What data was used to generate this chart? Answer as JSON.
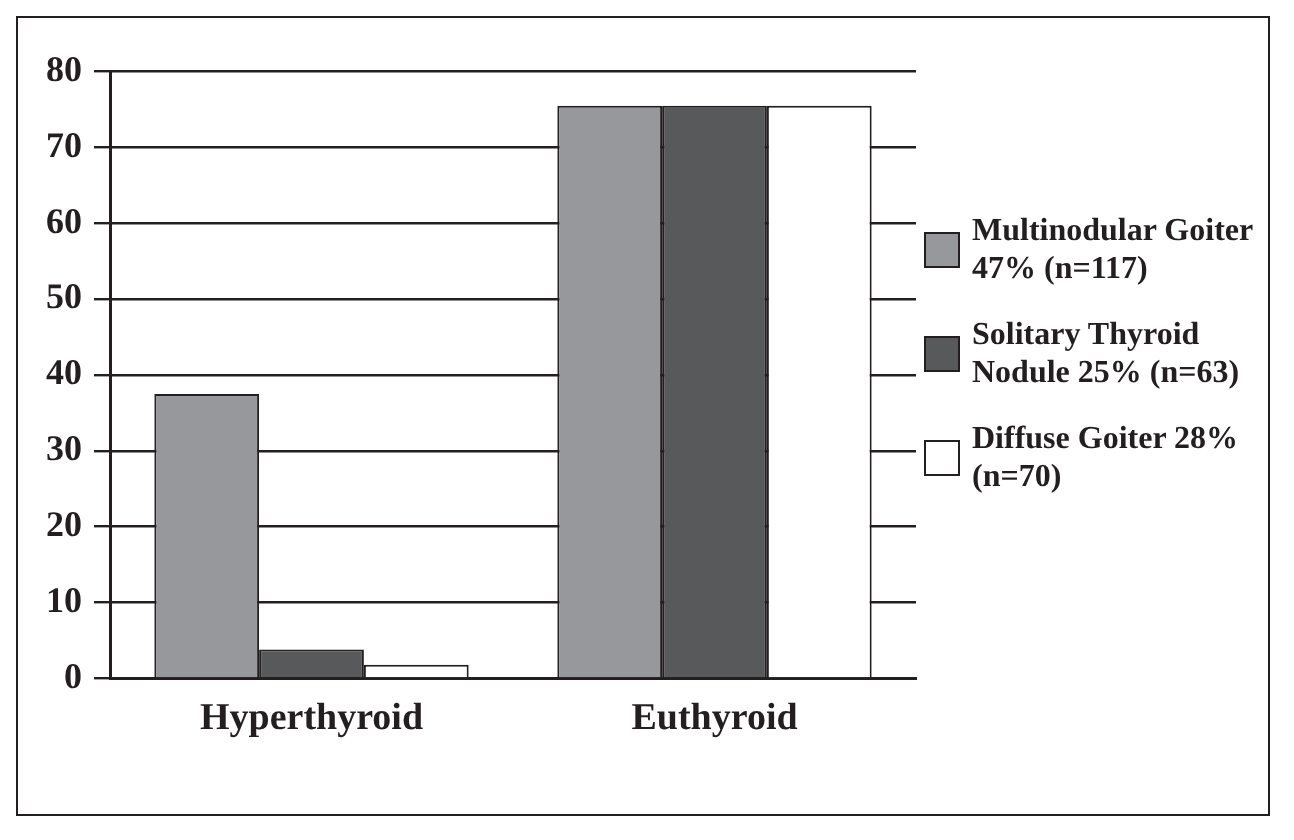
{
  "chart_data": {
    "type": "bar",
    "categories": [
      "Hyperthyroid",
      "Euthyroid"
    ],
    "series": [
      {
        "name": "Multinodular Goiter 47% (n=117)",
        "color": "#97989c",
        "values": [
          37.5,
          75.5
        ]
      },
      {
        "name": "Solitary Thyroid Nodule 25% (n=63)",
        "color": "#58595b",
        "values": [
          3.8,
          75.5
        ]
      },
      {
        "name": "Diffuse Goiter 28% (n=70)",
        "color": "#ffffff",
        "values": [
          1.8,
          75.5
        ]
      }
    ],
    "ylim": [
      0,
      80
    ],
    "yticks": [
      0,
      10,
      20,
      30,
      40,
      50,
      60,
      70,
      80
    ],
    "grid": "y",
    "legend": "right"
  }
}
